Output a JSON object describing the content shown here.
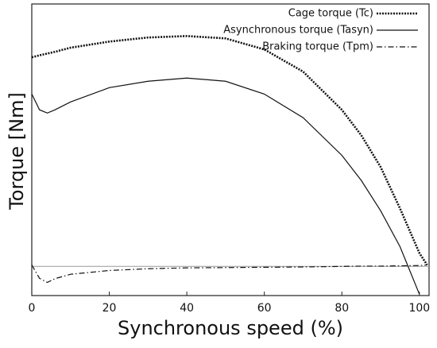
{
  "chart_data": {
    "type": "line",
    "xlabel": "Synchronous speed (%)",
    "ylabel": "Torque [Nm]",
    "x": [
      0,
      2,
      4,
      6,
      10,
      20,
      30,
      40,
      50,
      60,
      70,
      80,
      85,
      90,
      95,
      100,
      102
    ],
    "series": [
      {
        "name": "Cage torque (Tc)",
        "color": "#111111",
        "style": "dotted",
        "values": [
          7.17,
          7.24,
          7.3,
          7.36,
          7.5,
          7.71,
          7.85,
          7.9,
          7.82,
          7.44,
          6.68,
          5.37,
          4.5,
          3.41,
          1.99,
          0.46,
          0.05
        ]
      },
      {
        "name": "Asynchronous torque (Tasyn)",
        "color": "#111111",
        "style": "solid",
        "values": [
          5.91,
          5.37,
          5.26,
          5.37,
          5.64,
          6.13,
          6.35,
          6.46,
          6.35,
          5.91,
          5.1,
          3.81,
          2.95,
          1.91,
          0.68,
          -0.95,
          null
        ]
      },
      {
        "name": "Braking torque (Tpm)",
        "color": "#111111",
        "style": "dashdot",
        "values": [
          0.05,
          -0.41,
          -0.55,
          -0.42,
          -0.27,
          -0.14,
          -0.08,
          -0.05,
          -0.04,
          -0.03,
          -0.02,
          0,
          0.01,
          0.01,
          0.02,
          0.03,
          0.05
        ]
      }
    ],
    "reference_line": 0,
    "xlim": [
      0,
      102.5
    ],
    "ylim": [
      -1,
      9
    ],
    "xticks": [
      0,
      20,
      40,
      60,
      80,
      100
    ],
    "legend": "upper right",
    "grid": false
  }
}
